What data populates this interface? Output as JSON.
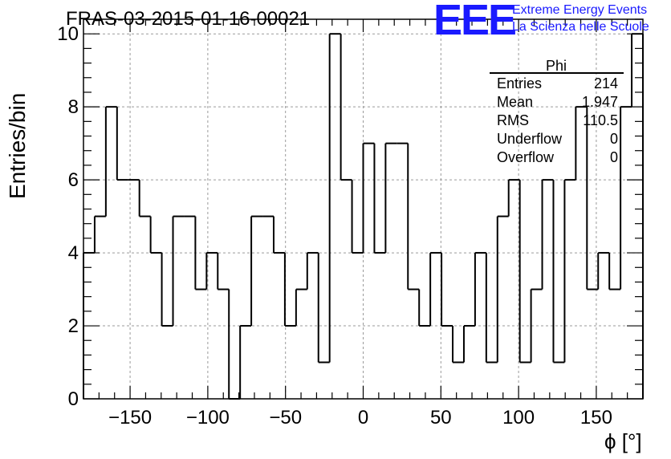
{
  "title": "FRAS-03-2015-01-16-00021",
  "logo": {
    "mark": "EEE",
    "line1": "Extreme Energy Events",
    "line2": "La Scienza nelle Scuole",
    "color": "#1a1aff"
  },
  "stats": {
    "title": "Phi",
    "rows": [
      {
        "name": "Entries",
        "value": "214"
      },
      {
        "name": "Mean",
        "value": "1.947"
      },
      {
        "name": "RMS",
        "value": "110.5"
      },
      {
        "name": "Underflow",
        "value": "0"
      },
      {
        "name": "Overflow",
        "value": "0"
      }
    ]
  },
  "chart_data": {
    "type": "bar",
    "style": "step-histogram",
    "xlabel": "ϕ [°]",
    "ylabel": "Entries/bin",
    "xlim": [
      -180,
      180
    ],
    "ylim": [
      0,
      10.4
    ],
    "bin_width": 7.2,
    "x_ticks": [
      -150,
      -100,
      -50,
      0,
      50,
      100,
      150
    ],
    "y_ticks": [
      0,
      2,
      4,
      6,
      8,
      10
    ],
    "grid": true,
    "values": [
      4,
      5,
      8,
      6,
      6,
      5,
      4,
      2,
      5,
      5,
      3,
      4,
      3,
      0,
      2,
      5,
      5,
      4,
      2,
      3,
      4,
      1,
      10,
      6,
      4,
      7,
      4,
      7,
      7,
      3,
      2,
      4,
      2,
      1,
      2,
      4,
      1,
      5,
      6,
      1,
      3,
      6,
      1,
      6,
      8,
      3,
      4,
      3,
      8,
      10
    ]
  }
}
